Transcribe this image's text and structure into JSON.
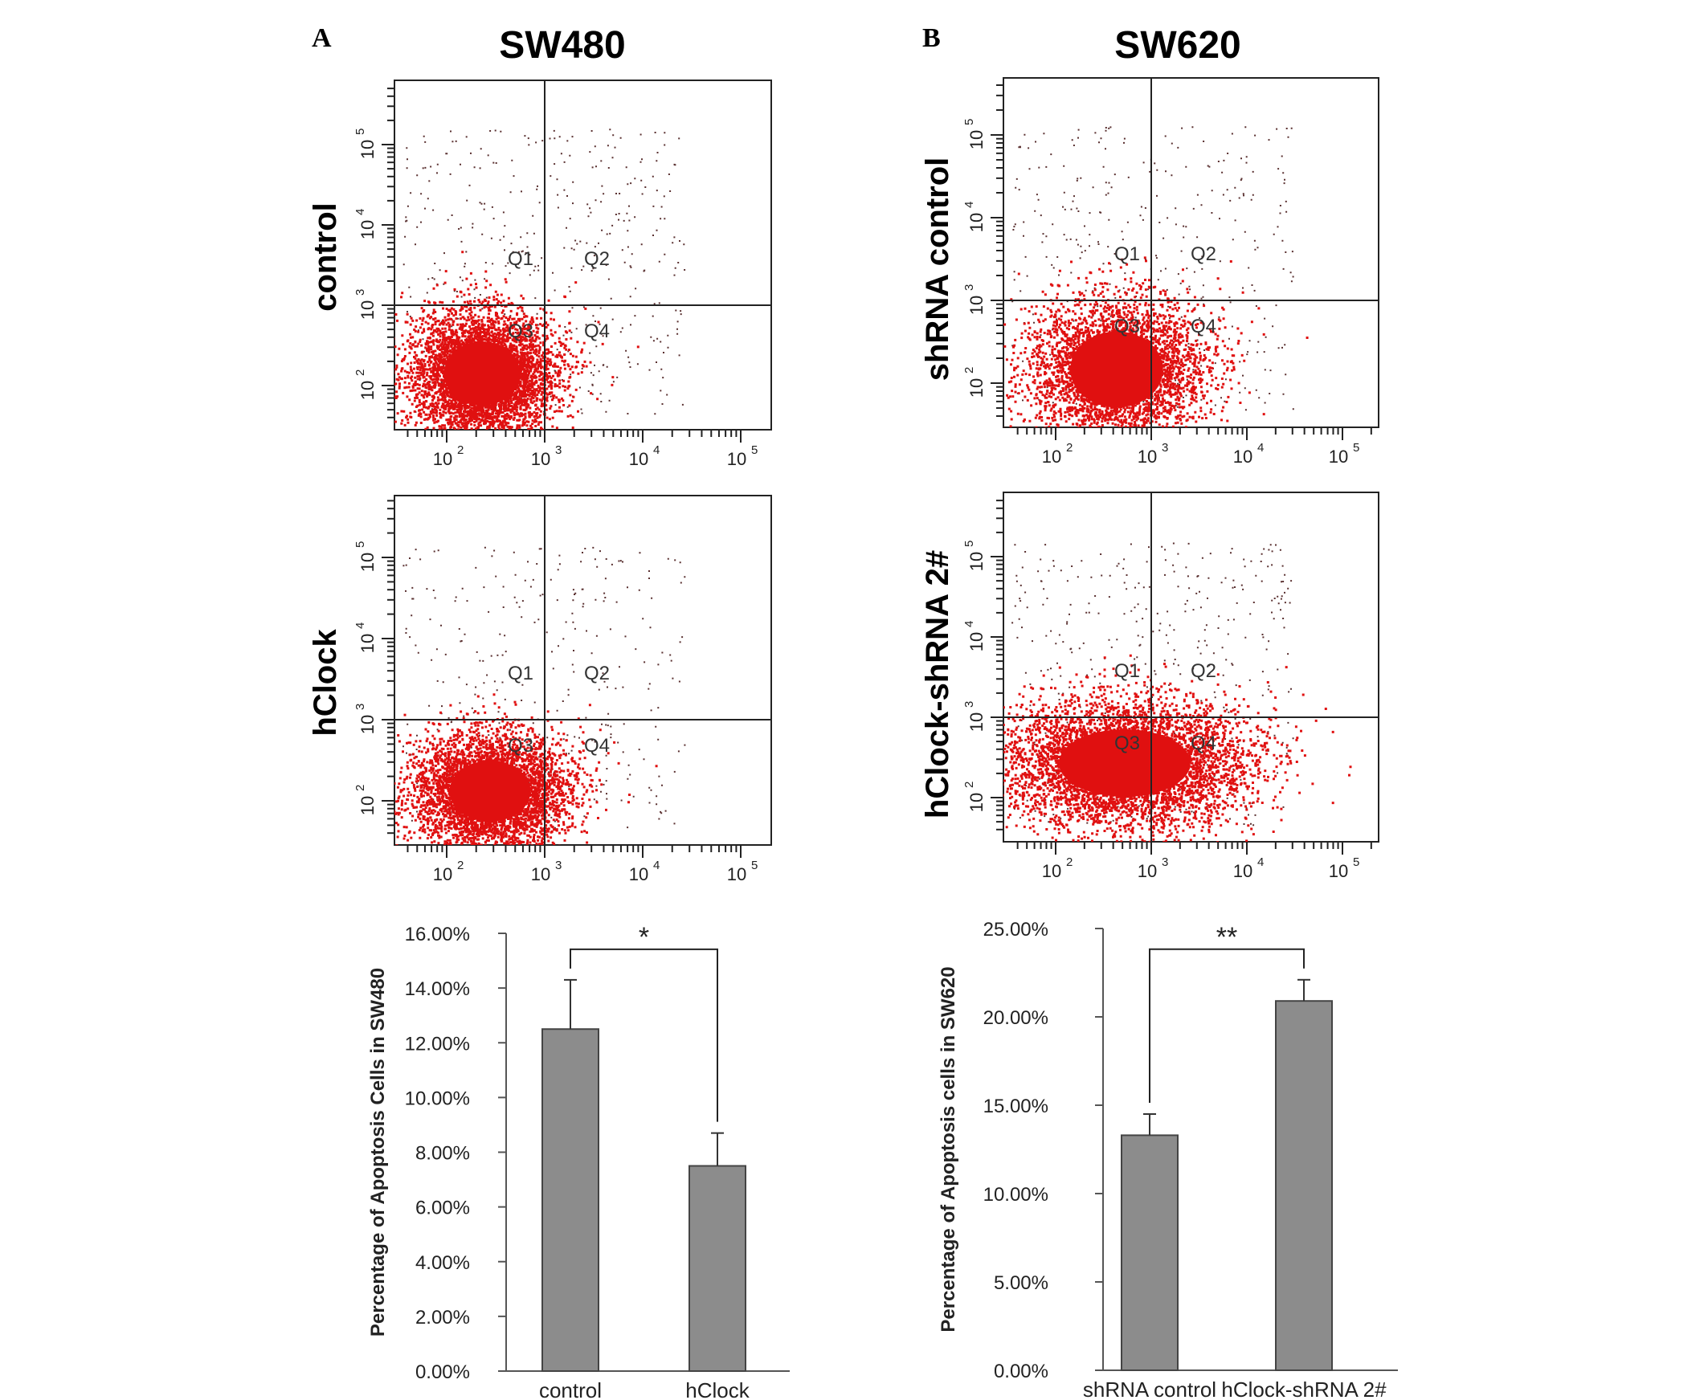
{
  "panels": [
    {
      "letter": "A",
      "cell_line": "SW480",
      "flow_plots": [
        {
          "row_label": "control",
          "quadrants": [
            "Q1",
            "Q2",
            "Q3",
            "Q4"
          ]
        },
        {
          "row_label": "hClock",
          "quadrants": [
            "Q1",
            "Q2",
            "Q3",
            "Q4"
          ]
        }
      ]
    },
    {
      "letter": "B",
      "cell_line": "SW620",
      "flow_plots": [
        {
          "row_label": "shRNA control",
          "quadrants": [
            "Q1",
            "Q2",
            "Q3",
            "Q4"
          ]
        },
        {
          "row_label": "hClock-shRNA 2#",
          "quadrants": [
            "Q1",
            "Q2",
            "Q3",
            "Q4"
          ]
        }
      ]
    }
  ],
  "flow_axis_ticks": [
    "10",
    "10",
    "10",
    "10"
  ],
  "flow_axis_exponents": [
    "2",
    "3",
    "4",
    "5"
  ],
  "colors": {
    "dots": "#e01010",
    "sparse_dots": "#5a3030",
    "bars": "#8c8c8c",
    "axes": "#222222"
  },
  "chart_data": [
    {
      "type": "bar",
      "categories": [
        "control",
        "hClock"
      ],
      "values": [
        12.5,
        7.5
      ],
      "errors": [
        1.8,
        1.2
      ],
      "ylabel": "Percentage of Apoptosis Cells in SW480",
      "ylim": [
        0,
        16
      ],
      "ytick_values": [
        0,
        2,
        4,
        6,
        8,
        10,
        12,
        14,
        16
      ],
      "ytick_labels": [
        "0.00%",
        "2.00%",
        "4.00%",
        "6.00%",
        "8.00%",
        "10.00%",
        "12.00%",
        "14.00%",
        "16.00%"
      ],
      "significance": "*",
      "grid": false
    },
    {
      "type": "bar",
      "categories": [
        "shRNA control",
        "hClock-shRNA 2#"
      ],
      "values": [
        13.3,
        20.9
      ],
      "errors": [
        1.2,
        1.2
      ],
      "ylabel": "Percentage of Apoptosis cells in SW620",
      "ylim": [
        0,
        25
      ],
      "ytick_values": [
        0,
        5,
        10,
        15,
        20,
        25
      ],
      "ytick_labels": [
        "0.00%",
        "5.00%",
        "10.00%",
        "15.00%",
        "20.00%",
        "25.00%"
      ],
      "significance": "**",
      "grid": false
    }
  ]
}
